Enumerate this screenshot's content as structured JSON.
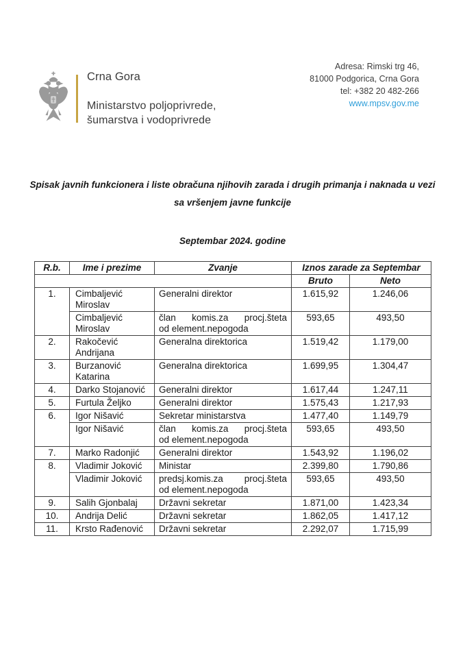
{
  "header": {
    "organization": {
      "country": "Crna Gora",
      "ministry_lines": [
        "Ministarstvo poljoprivrede,",
        "šumarstva i vodoprivrede"
      ]
    },
    "contact": {
      "address_line1": "Adresa: Rimski trg 46,",
      "address_line2": "81000 Podgorica, Crna Gora",
      "phone": "tel: +382 20 482-266",
      "website": "www.mpsv.gov.me"
    },
    "colors": {
      "separator_gold": "#c7a443",
      "link_blue": "#2f9ed9"
    }
  },
  "document": {
    "title_lines": [
      "Spisak javnih funkcionera i liste obračuna njihovih zarada i drugih primanja i naknada u vezi",
      "sa vršenjem javne funkcije"
    ],
    "period": "Septembar 2024. godine"
  },
  "table": {
    "headers": {
      "rb": "R.b.",
      "name": "Ime i prezime",
      "title": "Zvanje",
      "salary_group": "Iznos zarade za Septembar",
      "bruto": "Bruto",
      "neto": "Neto"
    },
    "rows": [
      {
        "rb": "1.",
        "rowspan": 2,
        "name": "Cimbaljević Miroslav",
        "zvanje": "Generalni direktor",
        "bruto": "1.615,92",
        "neto": "1.246,06"
      },
      {
        "name": "Cimbaljević Miroslav",
        "zvanje_lines": [
          "član komis.za procj.šteta",
          "od element.nepogoda"
        ],
        "bruto": "593,65",
        "neto": "493,50"
      },
      {
        "rb": "2.",
        "name": "Rakočević Andrijana",
        "zvanje": "Generalna direktorica",
        "bruto": "1.519,42",
        "neto": "1.179,00"
      },
      {
        "rb": "3.",
        "name": "Burzanović Katarina",
        "zvanje": "Generalna direktorica",
        "bruto": "1.699,95",
        "neto": "1.304,47"
      },
      {
        "rb": "4.",
        "name": "Darko Stojanović",
        "zvanje": "Generalni direktor",
        "bruto": "1.617,44",
        "neto": "1.247,11"
      },
      {
        "rb": "5.",
        "name": "Furtula Željko",
        "zvanje": "Generalni direktor",
        "bruto": "1.575,43",
        "neto": "1.217,93"
      },
      {
        "rb": "6.",
        "rowspan": 2,
        "name": "Igor Nišavić",
        "zvanje": "Sekretar ministarstva",
        "bruto": "1.477,40",
        "neto": "1.149,79"
      },
      {
        "name": "Igor Nišavić",
        "zvanje_lines": [
          "član komis.za procj.šteta",
          "od element.nepogoda"
        ],
        "bruto": "593,65",
        "neto": "493,50"
      },
      {
        "rb": "7.",
        "name": "Marko Radonjić",
        "zvanje": "Generalni direktor",
        "bruto": "1.543,92",
        "neto": "1.196,02"
      },
      {
        "rb": "8.",
        "rowspan": 2,
        "name": "Vladimir Joković",
        "zvanje": "Ministar",
        "bruto": "2.399,80",
        "neto": "1.790,86"
      },
      {
        "name": "Vladimir Joković",
        "zvanje_lines": [
          "predsj.komis.za procj.šteta",
          "od element.nepogoda"
        ],
        "bruto": "593,65",
        "neto": "493,50"
      },
      {
        "rb": "9.",
        "name": "Salih Gjonbalaj",
        "zvanje": "Državni sekretar",
        "bruto": "1.871,00",
        "neto": "1.423,34"
      },
      {
        "rb": "10.",
        "name": "Andrija Delić",
        "zvanje": "Državni sekretar",
        "bruto": "1.862,05",
        "neto": "1.417,12"
      },
      {
        "rb": "11.",
        "name": "Krsto Rađenović",
        "zvanje": "Državni sekretar",
        "bruto": "2.292,07",
        "neto": "1.715,99"
      }
    ]
  }
}
